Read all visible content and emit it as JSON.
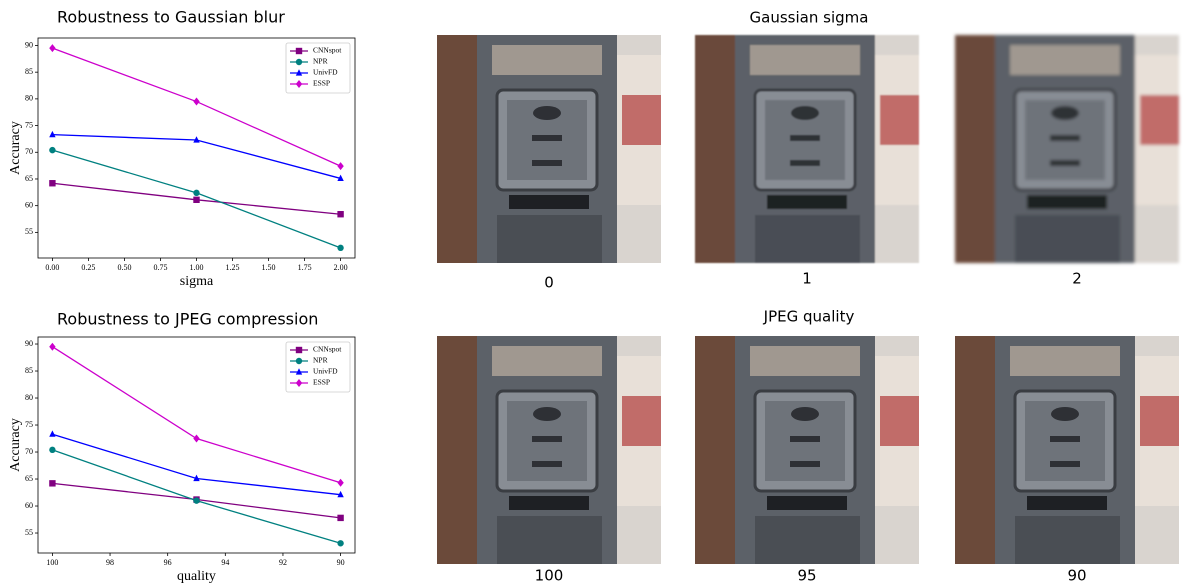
{
  "chart_data": [
    {
      "type": "line",
      "title": "Robustness to Gaussian blur",
      "x_label": "sigma",
      "y_label": "Accuracy",
      "x": [
        0,
        1,
        2
      ],
      "xlim": [
        -0.1,
        2.1
      ],
      "xticks": [
        {
          "value": 0,
          "label": "0.00"
        },
        {
          "value": 0.25,
          "label": "0.25"
        },
        {
          "value": 0.5,
          "label": "0.50"
        },
        {
          "value": 0.75,
          "label": "0.75"
        },
        {
          "value": 1,
          "label": "1.00"
        },
        {
          "value": 1.25,
          "label": "1.25"
        },
        {
          "value": 1.5,
          "label": "1.50"
        },
        {
          "value": 1.75,
          "label": "1.75"
        },
        {
          "value": 2,
          "label": "2.00"
        }
      ],
      "ylim": [
        50.2,
        91.4
      ],
      "yticks": [
        55,
        60,
        65,
        70,
        75,
        80,
        85,
        90
      ],
      "grid": false,
      "legend": "upper right",
      "series": [
        {
          "name": "CNNspot",
          "color": "#800080",
          "marker": "square",
          "values": [
            64.2,
            61.1,
            58.4
          ]
        },
        {
          "name": "NPR",
          "color": "#008080",
          "marker": "circle",
          "values": [
            70.4,
            62.4,
            52.1
          ]
        },
        {
          "name": "UnivFD",
          "color": "#0000ff",
          "marker": "triangle",
          "values": [
            73.3,
            72.3,
            65.1
          ]
        },
        {
          "name": "ESSP",
          "color": "#cc00cc",
          "marker": "diamond",
          "values": [
            89.5,
            79.5,
            67.4
          ]
        }
      ]
    },
    {
      "type": "line",
      "title": "Robustness to JPEG compression",
      "x_label": "quality",
      "y_label": "Accuracy",
      "x": [
        100,
        95,
        90
      ],
      "xlim": [
        100.5,
        89.5
      ],
      "xticks": [
        100,
        98,
        96,
        94,
        92,
        90
      ],
      "ylim": [
        51.3,
        91.3
      ],
      "yticks": [
        55,
        60,
        65,
        70,
        75,
        80,
        85,
        90
      ],
      "grid": false,
      "legend": "upper right",
      "series": [
        {
          "name": "CNNspot",
          "color": "#800080",
          "marker": "square",
          "values": [
            64.2,
            61.2,
            57.8
          ]
        },
        {
          "name": "NPR",
          "color": "#008080",
          "marker": "circle",
          "values": [
            70.4,
            61.0,
            53.1
          ]
        },
        {
          "name": "UnivFD",
          "color": "#0000ff",
          "marker": "triangle",
          "values": [
            73.3,
            65.1,
            62.1
          ]
        },
        {
          "name": "ESSP",
          "color": "#cc00cc",
          "marker": "diamond",
          "values": [
            89.5,
            72.5,
            64.3
          ]
        }
      ]
    }
  ],
  "image_panels": [
    {
      "title": "Gaussian sigma",
      "captions": [
        "0",
        "1",
        "2"
      ]
    },
    {
      "title": "JPEG quality",
      "captions": [
        "100",
        "95",
        "90"
      ]
    }
  ]
}
